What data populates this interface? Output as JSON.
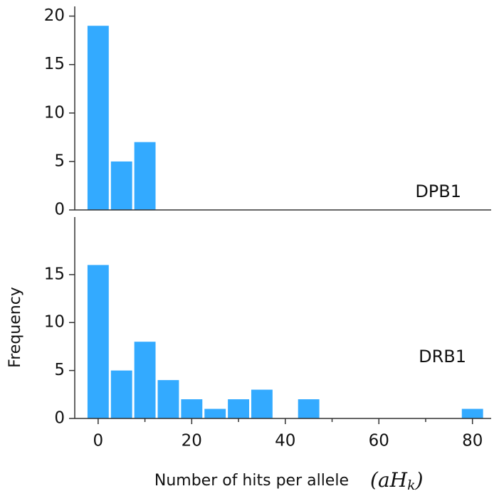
{
  "chart_data": [
    {
      "type": "histogram",
      "label": "DPB1",
      "color": "#33aaff",
      "bins": [
        -2.5,
        2.5,
        7.5,
        12.5
      ],
      "values": [
        19,
        5,
        7
      ],
      "xlim": [
        -5,
        84
      ],
      "ylim": [
        0,
        21
      ],
      "yticks": [
        0,
        5,
        10,
        15,
        20
      ]
    },
    {
      "type": "histogram",
      "label": "DRB1",
      "color": "#33aaff",
      "bins": [
        -2.5,
        2.5,
        7.5,
        12.5,
        17.5,
        22.5,
        27.5,
        32.5,
        37.5,
        42.5,
        47.5,
        52.5,
        57.5,
        62.5,
        67.5,
        72.5,
        77.5,
        82.5
      ],
      "values": [
        16,
        5,
        8,
        4,
        2,
        1,
        2,
        3,
        0,
        2,
        0,
        0,
        0,
        0,
        0,
        0,
        1
      ],
      "xlim": [
        -5,
        84
      ],
      "ylim": [
        0,
        21
      ],
      "yticks": [
        0,
        5,
        10,
        15
      ],
      "xticks": [
        0,
        20,
        40,
        60,
        80
      ],
      "minor_xticks": [
        10,
        30,
        50,
        70
      ],
      "xlabel": "Number of hits per allele",
      "xlabel_symbol": "aH",
      "xlabel_symbol_sub": "k",
      "ylabel": "Frequency"
    }
  ]
}
